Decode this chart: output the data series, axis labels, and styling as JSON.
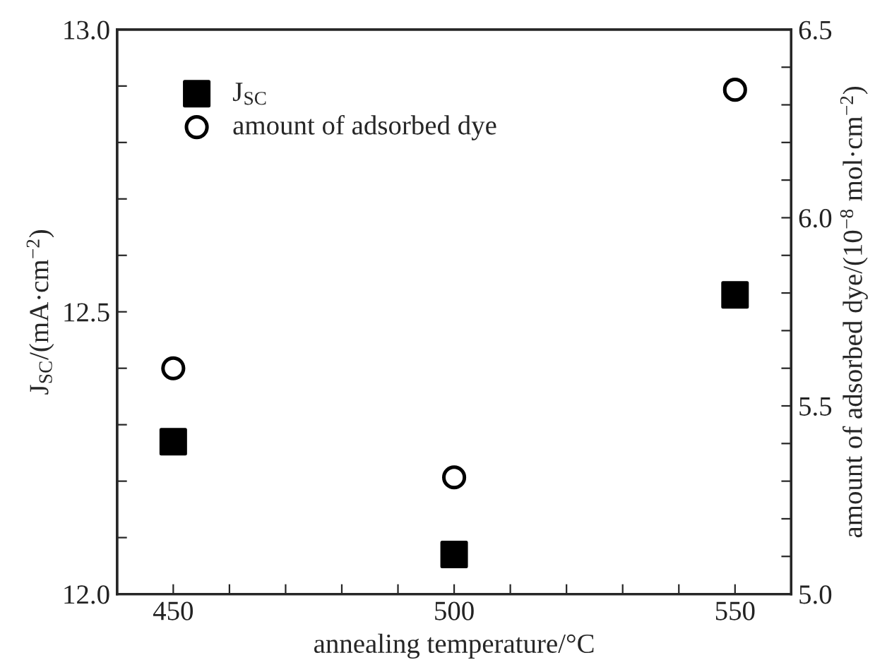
{
  "chart_data": {
    "type": "scatter",
    "xlabel": "annealing temperature/°C",
    "ylabel": "J$_{SC}$/(mA·cm$^{−2}$)",
    "y2label": "amount of adsorbed dye/(10$^{−8}$ mol·cm$^{−2}$)",
    "x": [
      450,
      500,
      550
    ],
    "series": [
      {
        "name": "J$_{SC}$",
        "color": "#000000",
        "marker": "square",
        "values": [
          12.27,
          12.07,
          12.53
        ]
      },
      {
        "name": "amount of adsorbed dye",
        "color": "#000000",
        "marker": "circle",
        "axis": "y2",
        "values": [
          5.6,
          5.31,
          6.34
        ]
      }
    ],
    "xlim": [
      440,
      560
    ],
    "xticks": [
      450,
      {
        "value": 460,
        "label": null
      },
      {
        "value": 470,
        "label": null
      },
      {
        "value": 480,
        "label": null
      },
      {
        "value": 490,
        "label": null
      },
      500,
      {
        "value": 510,
        "label": null
      },
      {
        "value": 520,
        "label": null
      },
      {
        "value": 530,
        "label": null
      },
      {
        "value": 540,
        "label": null
      },
      550
    ],
    "ylim": [
      12.0,
      13.0
    ],
    "yticks": [
      {
        "value": 12,
        "label": "12.0"
      },
      {
        "value": 12.1,
        "label": null
      },
      {
        "value": 12.2,
        "label": null
      },
      {
        "value": 12.3,
        "label": null
      },
      {
        "value": 12.4,
        "label": null
      },
      12.5,
      {
        "value": 12.6,
        "label": null
      },
      {
        "value": 12.7,
        "label": null
      },
      {
        "value": 12.8,
        "label": null
      },
      {
        "value": 12.9,
        "label": null
      },
      {
        "value": 13,
        "label": "13.0"
      }
    ],
    "y2lim": [
      5.0,
      6.5
    ],
    "y2ticks": [
      {
        "value": 5,
        "label": "5.0"
      },
      {
        "value": 5.1,
        "label": null
      },
      {
        "value": 5.2,
        "label": null
      },
      {
        "value": 5.3,
        "label": null
      },
      {
        "value": 5.4,
        "label": null
      },
      5.5,
      {
        "value": 5.6,
        "label": null
      },
      {
        "value": 5.7,
        "label": null
      },
      {
        "value": 5.8,
        "label": null
      },
      {
        "value": 5.9,
        "label": null
      },
      {
        "value": 6,
        "label": "6.0"
      },
      {
        "value": 6.1,
        "label": null
      },
      {
        "value": 6.2,
        "label": null
      },
      {
        "value": 6.3,
        "label": null
      },
      {
        "value": 6.4,
        "label": null
      },
      6.5
    ],
    "legend": "top left",
    "grid": false
  }
}
